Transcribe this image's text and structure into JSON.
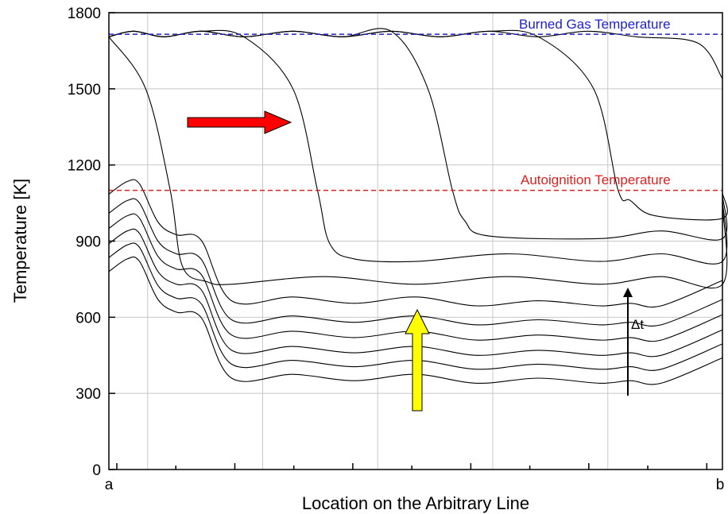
{
  "chart_data": {
    "type": "line",
    "title": "",
    "xlabel": "Location on the Arbitrary Line",
    "ylabel": "Temperature [K]",
    "x_tick_labels": [
      "a",
      "b"
    ],
    "xlim": [
      0,
      1
    ],
    "ylim": [
      0,
      1800
    ],
    "y_ticks": [
      0,
      300,
      600,
      900,
      1200,
      1500,
      1800
    ],
    "grid": true,
    "reference_lines": [
      {
        "label": "Burned Gas Temperature",
        "y": 1715,
        "color": "#1f1fd0"
      },
      {
        "label": "Autoignition Temperature",
        "y": 1100,
        "color": "#e02020"
      }
    ],
    "annotations": {
      "delta_t_label": "Δt",
      "arrow_colors": {
        "flame_direction": "#ff0000",
        "heating_direction": "#ffff00"
      }
    },
    "heating_profiles": {
      "x": [
        0,
        0.03,
        0.05,
        0.08,
        0.11,
        0.15,
        0.2,
        0.3,
        0.4,
        0.5,
        0.6,
        0.7,
        0.8,
        0.85,
        0.9,
        1.0
      ],
      "base_K": [
        780,
        830,
        820,
        670,
        620,
        600,
        360,
        375,
        350,
        375,
        340,
        360,
        340,
        350,
        340,
        440
      ],
      "offsets_K": [
        0,
        55,
        110,
        170,
        230,
        305
      ]
    },
    "flame_profiles": [
      {
        "front_x": 0.1,
        "hot_K": 1715,
        "plateau_K": 740,
        "end_K": 1040
      },
      {
        "front_x": 0.34,
        "hot_K": 1715,
        "plateau_K": 830,
        "end_K": 1060
      },
      {
        "front_x": 0.56,
        "hot_K": 1715,
        "plateau_K": 920,
        "end_K": 1080
      },
      {
        "front_x": 0.83,
        "hot_K": 1715,
        "plateau_K": 1000,
        "end_K": 1090
      },
      {
        "front_x": 1.0,
        "hot_K": 1715,
        "plateau_K": 1600,
        "end_K": 1540
      }
    ]
  }
}
